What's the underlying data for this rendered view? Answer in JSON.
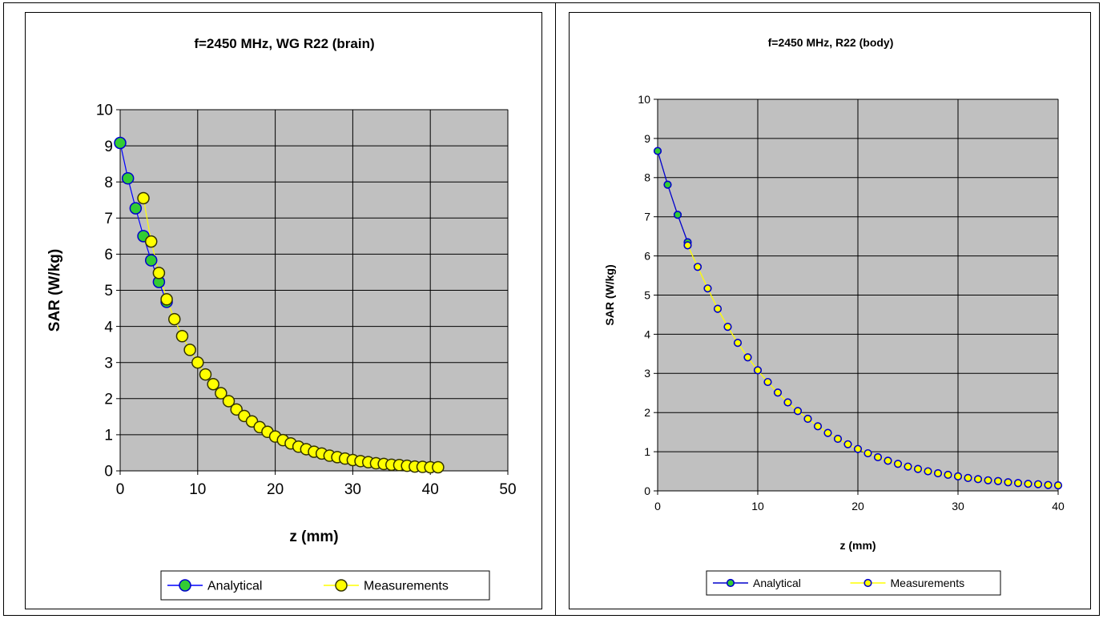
{
  "chart_data": [
    {
      "type": "scatter",
      "title": "f=2450 MHz, WG R22 (brain)",
      "xlabel": "z (mm)",
      "ylabel": "SAR (W/kg)",
      "xlim": [
        0,
        50
      ],
      "ylim": [
        0,
        10
      ],
      "x_ticks": [
        "0",
        "10",
        "20",
        "30",
        "40",
        "50"
      ],
      "y_ticks": [
        "0",
        "1",
        "2",
        "3",
        "4",
        "5",
        "6",
        "7",
        "8",
        "9",
        "10"
      ],
      "grid": true,
      "legend_position": "bottom",
      "series": [
        {
          "name": "Analytical",
          "line_color": "#0000ff",
          "marker_color": "#33cc33",
          "x": [
            0,
            1,
            2,
            3,
            4,
            5,
            6
          ],
          "y": [
            9.08,
            8.1,
            7.27,
            6.5,
            5.83,
            5.23,
            4.68
          ]
        },
        {
          "name": "Measurements",
          "line_color": "#ffff00",
          "marker_color": "#ffff00",
          "x": [
            3,
            4,
            5,
            6,
            7,
            8,
            9,
            10,
            11,
            12,
            13,
            14,
            15,
            16,
            17,
            18,
            19,
            20,
            21,
            22,
            23,
            24,
            25,
            26,
            27,
            28,
            29,
            30,
            31,
            32,
            33,
            34,
            35,
            36,
            37,
            38,
            39,
            40,
            41
          ],
          "y": [
            7.55,
            6.35,
            5.48,
            4.75,
            4.2,
            3.73,
            3.35,
            3.0,
            2.67,
            2.4,
            2.15,
            1.93,
            1.7,
            1.52,
            1.37,
            1.21,
            1.08,
            0.95,
            0.85,
            0.76,
            0.67,
            0.6,
            0.53,
            0.48,
            0.42,
            0.38,
            0.34,
            0.3,
            0.27,
            0.24,
            0.21,
            0.19,
            0.17,
            0.16,
            0.14,
            0.12,
            0.11,
            0.1,
            0.1
          ]
        }
      ]
    },
    {
      "type": "scatter",
      "title": "f=2450 MHz, R22  (body)",
      "xlabel": "z (mm)",
      "ylabel": "SAR (W/kg)",
      "xlim": [
        0,
        40
      ],
      "ylim": [
        0,
        10
      ],
      "x_ticks": [
        "0",
        "10",
        "20",
        "30",
        "40"
      ],
      "y_ticks": [
        "0",
        "1",
        "2",
        "3",
        "4",
        "5",
        "6",
        "7",
        "8",
        "9",
        "10"
      ],
      "grid": true,
      "legend_position": "bottom",
      "series": [
        {
          "name": "Analytical",
          "line_color": "#0000cc",
          "marker_color": "#33cc33",
          "x": [
            0,
            1,
            2,
            3
          ],
          "y": [
            8.68,
            7.82,
            7.05,
            6.35
          ]
        },
        {
          "name": "Measurements",
          "line_color": "#ffff00",
          "marker_color": "#ffff00",
          "x": [
            3,
            4,
            5,
            6,
            7,
            8,
            9,
            10,
            11,
            12,
            13,
            14,
            15,
            16,
            17,
            18,
            19,
            20,
            21,
            22,
            23,
            24,
            25,
            26,
            27,
            28,
            29,
            30,
            31,
            32,
            33,
            34,
            35,
            36,
            37,
            38,
            39,
            40
          ],
          "y": [
            6.27,
            5.72,
            5.17,
            4.65,
            4.19,
            3.78,
            3.41,
            3.08,
            2.78,
            2.51,
            2.26,
            2.04,
            1.84,
            1.65,
            1.48,
            1.33,
            1.19,
            1.07,
            0.96,
            0.86,
            0.77,
            0.69,
            0.62,
            0.56,
            0.5,
            0.45,
            0.41,
            0.37,
            0.33,
            0.3,
            0.27,
            0.25,
            0.22,
            0.2,
            0.18,
            0.17,
            0.15,
            0.14
          ]
        }
      ]
    }
  ]
}
